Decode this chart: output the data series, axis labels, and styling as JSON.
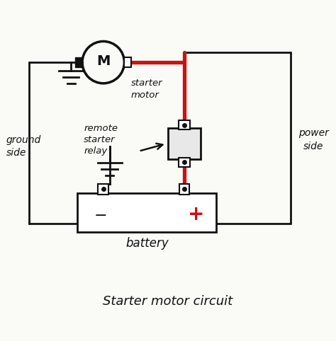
{
  "bg_color": "#fafaf7",
  "line_color": "#111111",
  "red_color": "#cc1111",
  "title": "Starter motor circuit",
  "label_ground_side": "ground\nside",
  "label_power_side": "power\nside",
  "label_starter_motor": "starter\nmotor",
  "label_relay": "remote\nstarter\nrelay",
  "label_battery": "battery",
  "label_M": "M",
  "label_minus": "−",
  "label_plus": "+",
  "figsize": [
    4.74,
    4.82
  ],
  "dpi": 100
}
